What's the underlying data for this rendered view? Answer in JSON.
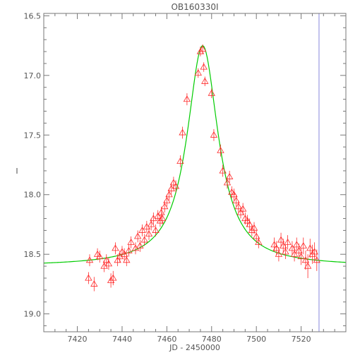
{
  "chart_data": {
    "type": "scatter",
    "title": "OB160330I",
    "xlabel": "JD - 2450000",
    "ylabel": "I",
    "xlim": [
      7405,
      7540
    ],
    "ylim": [
      19.15,
      16.48
    ],
    "y_inverted": true,
    "grid": false,
    "xticks": [
      7420,
      7440,
      7460,
      7480,
      7500,
      7520
    ],
    "yticks": [
      16.5,
      17.0,
      17.5,
      18.0,
      18.5,
      19.0
    ],
    "y_tick_labels": [
      "16.5",
      "17.0",
      "17.5",
      "18.0",
      "18.5",
      "19.0"
    ],
    "colors": {
      "points": "#ff2a2a",
      "model": "#00cc00",
      "marker_line": "#8888dd",
      "axes": "#777777"
    },
    "model": {
      "t0": 7476.0,
      "baseline": 18.6,
      "peak_mag": 16.75,
      "tau": 8.5
    },
    "vertical_line_x": 7528,
    "series": [
      {
        "marker": "triangle",
        "x": [
          7425,
          7425.5,
          7427.5,
          7429,
          7430,
          7432,
          7433,
          7434,
          7435,
          7436,
          7437,
          7438,
          7439,
          7440,
          7441,
          7442,
          7443,
          7444,
          7446,
          7447,
          7448,
          7449,
          7450,
          7451,
          7452,
          7453,
          7454,
          7455,
          7456,
          7457,
          7457.5,
          7458,
          7459,
          7460,
          7461,
          7462,
          7463,
          7464,
          7466,
          7467,
          7469,
          7474,
          7475,
          7476,
          7476.5,
          7477,
          7480,
          7481,
          7484,
          7485,
          7487,
          7488,
          7489,
          7490,
          7491,
          7492,
          7493,
          7494,
          7495,
          7496,
          7497,
          7498,
          7499,
          7500,
          7501,
          7508,
          7509,
          7510,
          7511,
          7512,
          7513,
          7514,
          7516,
          7517,
          7518,
          7519,
          7520,
          7521,
          7522,
          7523,
          7524,
          7525,
          7526,
          7527
        ],
        "y": [
          18.7,
          18.55,
          18.75,
          18.5,
          18.52,
          18.6,
          18.55,
          18.58,
          18.72,
          18.7,
          18.45,
          18.55,
          18.52,
          18.48,
          18.5,
          18.55,
          18.47,
          18.4,
          18.45,
          18.35,
          18.43,
          18.3,
          18.38,
          18.27,
          18.33,
          18.25,
          18.2,
          18.3,
          18.18,
          18.22,
          18.15,
          18.2,
          18.1,
          18.05,
          18.0,
          17.95,
          17.9,
          17.93,
          17.72,
          17.48,
          17.2,
          16.98,
          16.8,
          16.78,
          16.93,
          17.05,
          17.15,
          17.5,
          17.63,
          17.8,
          17.9,
          17.85,
          17.98,
          18.0,
          18.05,
          18.1,
          18.15,
          18.12,
          18.2,
          18.22,
          18.25,
          18.3,
          18.28,
          18.35,
          18.4,
          18.42,
          18.45,
          18.5,
          18.38,
          18.43,
          18.48,
          18.4,
          18.45,
          18.5,
          18.42,
          18.47,
          18.52,
          18.43,
          18.55,
          18.6,
          18.45,
          18.5,
          18.48,
          18.55
        ],
        "yerr": [
          0.05,
          0.05,
          0.06,
          0.05,
          0.05,
          0.05,
          0.05,
          0.05,
          0.06,
          0.06,
          0.05,
          0.05,
          0.05,
          0.05,
          0.05,
          0.05,
          0.05,
          0.05,
          0.05,
          0.05,
          0.05,
          0.05,
          0.05,
          0.05,
          0.05,
          0.05,
          0.05,
          0.05,
          0.05,
          0.05,
          0.05,
          0.05,
          0.05,
          0.05,
          0.05,
          0.05,
          0.05,
          0.05,
          0.05,
          0.05,
          0.05,
          0.04,
          0.04,
          0.04,
          0.04,
          0.04,
          0.04,
          0.05,
          0.05,
          0.05,
          0.05,
          0.05,
          0.05,
          0.05,
          0.05,
          0.05,
          0.05,
          0.05,
          0.05,
          0.05,
          0.05,
          0.05,
          0.05,
          0.05,
          0.05,
          0.06,
          0.06,
          0.06,
          0.06,
          0.06,
          0.06,
          0.06,
          0.06,
          0.06,
          0.06,
          0.06,
          0.07,
          0.07,
          0.08,
          0.1,
          0.08,
          0.08,
          0.08,
          0.09
        ]
      }
    ]
  }
}
